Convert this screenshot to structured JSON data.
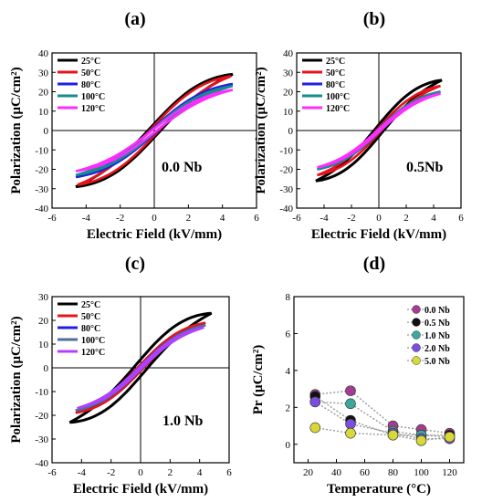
{
  "chart_data": [
    {
      "type": "line",
      "panel_label": "(a)",
      "annotation": "0.0 Nb",
      "xlabel": "Electric Field (kV/mm)",
      "ylabel": "Polarization (μC/cm²)",
      "xlim": [
        -6,
        6
      ],
      "ylim": [
        -40,
        40
      ],
      "xticks": [
        -6,
        -4,
        -2,
        0,
        2,
        4,
        6
      ],
      "yticks": [
        -40,
        -30,
        -20,
        -10,
        0,
        10,
        20,
        30,
        40
      ],
      "legend_position": "top-left",
      "series": [
        {
          "name": "25°C",
          "color": "#000000",
          "pmax": 29,
          "emax": 4.6,
          "pr": 3.5
        },
        {
          "name": "50°C",
          "color": "#e8141b",
          "pmax": 28,
          "emax": 4.5,
          "pr": 2.6
        },
        {
          "name": "80°C",
          "color": "#1f1fe6",
          "pmax": 24,
          "emax": 4.6,
          "pr": 1.6
        },
        {
          "name": "100°C",
          "color": "#188c8c",
          "pmax": 23,
          "emax": 4.6,
          "pr": 1.2
        },
        {
          "name": "120°C",
          "color": "#ff2bff",
          "pmax": 21,
          "emax": 4.6,
          "pr": 1.0
        }
      ]
    },
    {
      "type": "line",
      "panel_label": "(b)",
      "annotation": "0.5Nb",
      "xlabel": "Electric Field (kV/mm)",
      "ylabel": "Polarization (μC/cm²)",
      "xlim": [
        -6,
        6
      ],
      "ylim": [
        -40,
        40
      ],
      "xticks": [
        -6,
        -4,
        -2,
        0,
        2,
        4,
        6
      ],
      "yticks": [
        -40,
        -30,
        -20,
        -10,
        0,
        10,
        20,
        30,
        40
      ],
      "legend_position": "top-left",
      "series": [
        {
          "name": "25°C",
          "color": "#000000",
          "pmax": 26,
          "emax": 4.6,
          "pr": 3.0
        },
        {
          "name": "50°C",
          "color": "#e8141b",
          "pmax": 23,
          "emax": 4.5,
          "pr": 1.5
        },
        {
          "name": "80°C",
          "color": "#1f1fe6",
          "pmax": 20,
          "emax": 4.5,
          "pr": 0.9
        },
        {
          "name": "100°C",
          "color": "#188c8c",
          "pmax": 20,
          "emax": 4.5,
          "pr": 0.8
        },
        {
          "name": "120°C",
          "color": "#ff2bff",
          "pmax": 19,
          "emax": 4.5,
          "pr": 0.6
        }
      ]
    },
    {
      "type": "line",
      "panel_label": "(c)",
      "annotation": "1.0 Nb",
      "xlabel": "Electric Field (kV/mm)",
      "ylabel": "Polarization (μC/cm²)",
      "xlim": [
        -6,
        6
      ],
      "ylim": [
        -40,
        30
      ],
      "xticks": [
        -6,
        -4,
        -2,
        0,
        2,
        4,
        6
      ],
      "yticks": [
        -40,
        -30,
        -20,
        -10,
        0,
        10,
        20,
        30
      ],
      "legend_position": "top-left",
      "series": [
        {
          "name": "25°C",
          "color": "#000000",
          "pmax": 23,
          "emax": 4.8,
          "pr": 3.5
        },
        {
          "name": "50°C",
          "color": "#e8141b",
          "pmax": 19,
          "emax": 4.4,
          "pr": 1.4
        },
        {
          "name": "80°C",
          "color": "#1f1fe6",
          "pmax": 18,
          "emax": 4.4,
          "pr": 0.8
        },
        {
          "name": "100°C",
          "color": "#4f6e9a",
          "pmax": 18,
          "emax": 4.4,
          "pr": 0.7
        },
        {
          "name": "120°C",
          "color": "#b040ff",
          "pmax": 17,
          "emax": 4.3,
          "pr": 0.6
        }
      ]
    },
    {
      "type": "scatter",
      "panel_label": "(d)",
      "xlabel": "Temperature (°C)",
      "ylabel": "Pr (μC/cm²)",
      "xlim": [
        10,
        130
      ],
      "ylim": [
        -1,
        8
      ],
      "xticks": [
        20,
        40,
        60,
        80,
        100,
        120
      ],
      "yticks": [
        0,
        2,
        4,
        6,
        8
      ],
      "legend_position": "top-right",
      "x": [
        25,
        50,
        80,
        100,
        120
      ],
      "series": [
        {
          "name": "0.0 Nb",
          "color": "#a63c92",
          "values": [
            2.7,
            2.9,
            1.0,
            0.8,
            0.6
          ]
        },
        {
          "name": "0.5 Nb",
          "color": "#111111",
          "values": [
            2.6,
            1.3,
            0.5,
            0.5,
            0.5
          ]
        },
        {
          "name": "1.0 Nb",
          "color": "#3aa89a",
          "values": [
            2.3,
            2.2,
            0.7,
            0.5,
            0.4
          ]
        },
        {
          "name": "2.0 Nb",
          "color": "#7a4fe0",
          "values": [
            2.3,
            1.1,
            0.6,
            0.3,
            0.3
          ]
        },
        {
          "name": "5.0 Nb",
          "color": "#d8d838",
          "values": [
            0.9,
            0.6,
            0.5,
            0.2,
            0.4
          ]
        }
      ]
    }
  ]
}
